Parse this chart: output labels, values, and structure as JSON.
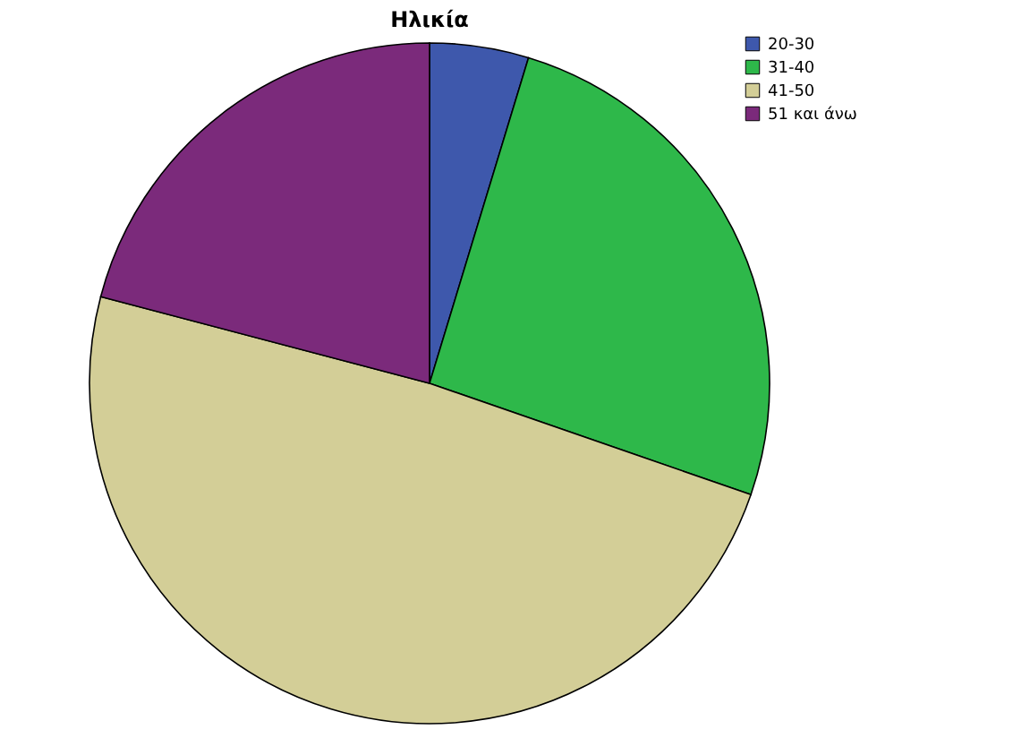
{
  "chart_data": {
    "type": "pie",
    "title": "Ηλικία",
    "categories": [
      "20-30",
      "31-40",
      "41-50",
      "51 και άνω"
    ],
    "values": [
      4.7,
      25.6,
      48.8,
      20.9
    ],
    "colors": [
      "#3e58ac",
      "#2eb84a",
      "#d3ce97",
      "#7b2a7b"
    ],
    "legend": "top right"
  }
}
